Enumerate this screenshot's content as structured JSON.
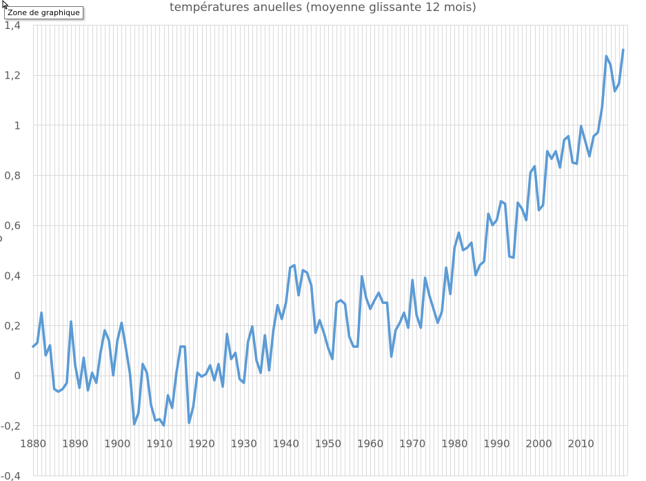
{
  "tooltip": {
    "text": "Zone de graphique"
  },
  "cursor": {
    "icon": "mouse-pointer-icon"
  },
  "yaxis_cut_label": "o",
  "colors": {
    "line": "#5B9BD5",
    "grid": "#D9D9D9",
    "text": "#595959"
  },
  "chart_data": {
    "type": "line",
    "title": "températures anuelles (moyenne glissante 12 mois)",
    "xlabel": "",
    "ylabel": "",
    "xlim": [
      1880,
      2021
    ],
    "ylim": [
      -0.4,
      1.4
    ],
    "grid": {
      "x_minor_every": 1,
      "y_major_every": 0.2
    },
    "legend": "none",
    "x_ticks": [
      1880,
      1890,
      1900,
      1910,
      1920,
      1930,
      1940,
      1950,
      1960,
      1970,
      1980,
      1990,
      2000,
      2010
    ],
    "y_ticks": [
      "-0,4",
      "-0,2",
      "0",
      "0,2",
      "0,4",
      "0,6",
      "0,8",
      "1",
      "1,2",
      "1,4"
    ],
    "series": [
      {
        "name": "températures anuelles",
        "x_start": 1880,
        "values": [
          0.115,
          0.13,
          0.25,
          0.08,
          0.12,
          -0.055,
          -0.065,
          -0.055,
          -0.03,
          0.215,
          0.04,
          -0.05,
          0.07,
          -0.06,
          0.01,
          -0.03,
          0.09,
          0.18,
          0.14,
          0.0,
          0.14,
          0.21,
          0.11,
          0.005,
          -0.195,
          -0.15,
          0.045,
          0.01,
          -0.12,
          -0.18,
          -0.175,
          -0.2,
          -0.08,
          -0.13,
          0.01,
          0.115,
          0.115,
          -0.19,
          -0.125,
          0.01,
          -0.005,
          0.005,
          0.04,
          -0.02,
          0.045,
          -0.045,
          0.165,
          0.065,
          0.09,
          -0.015,
          -0.03,
          0.135,
          0.195,
          0.06,
          0.01,
          0.16,
          0.02,
          0.18,
          0.28,
          0.225,
          0.29,
          0.43,
          0.44,
          0.32,
          0.42,
          0.41,
          0.36,
          0.17,
          0.22,
          0.17,
          0.11,
          0.065,
          0.29,
          0.3,
          0.285,
          0.155,
          0.115,
          0.115,
          0.395,
          0.31,
          0.265,
          0.3,
          0.33,
          0.29,
          0.29,
          0.075,
          0.18,
          0.21,
          0.25,
          0.19,
          0.38,
          0.24,
          0.19,
          0.39,
          0.32,
          0.265,
          0.21,
          0.255,
          0.43,
          0.325,
          0.51,
          0.57,
          0.5,
          0.51,
          0.53,
          0.4,
          0.44,
          0.455,
          0.645,
          0.6,
          0.62,
          0.695,
          0.685,
          0.475,
          0.47,
          0.69,
          0.665,
          0.62,
          0.81,
          0.835,
          0.66,
          0.68,
          0.895,
          0.865,
          0.895,
          0.83,
          0.94,
          0.955,
          0.85,
          0.845,
          0.995,
          0.935,
          0.875,
          0.955,
          0.97,
          1.07,
          1.275,
          1.24,
          1.135,
          1.165,
          1.3
        ]
      }
    ]
  }
}
